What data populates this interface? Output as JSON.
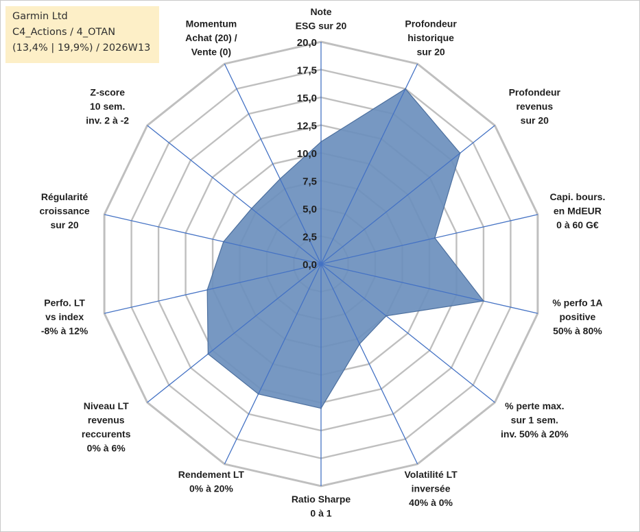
{
  "info": {
    "company": "Garmin Ltd",
    "portfolio": "C4_Actions / 4_OTAN",
    "stats": "(13,4% | 19,9%) / 2026W13"
  },
  "colors": {
    "fill": "#6b8fbd",
    "stroke": "#4c6f9e",
    "grid": "#bfbfbf",
    "spoke": "#4472c4",
    "infobox": "#fdefc7"
  },
  "chart_data": {
    "type": "radar",
    "title": "",
    "rmin": 0,
    "rmax": 20,
    "grid_rings": 8,
    "tick_labels": [
      "0,0",
      "2,5",
      "5,0",
      "7,5",
      "10,0",
      "12,5",
      "15,0",
      "17,5",
      "20,0"
    ],
    "axes": [
      {
        "label": [
          "Note",
          "ESG sur 20"
        ],
        "value": 11.0
      },
      {
        "label": [
          "Profondeur",
          "historique",
          "sur 20"
        ],
        "value": 17.5
      },
      {
        "label": [
          "Profondeur",
          "revenus",
          "sur 20"
        ],
        "value": 16.0
      },
      {
        "label": [
          "Capi. bours.",
          "en MdEUR",
          "0 à 60 G€"
        ],
        "value": 10.5
      },
      {
        "label": [
          "% perfo 1A",
          "positive",
          "50% à 80%"
        ],
        "value": 15.0
      },
      {
        "label": [
          "% perte max.",
          "sur 1 sem.",
          "inv. 50% à 20%"
        ],
        "value": 7.5
      },
      {
        "label": [
          "Volatilité LT",
          "inversée",
          "40% à 0%"
        ],
        "value": 8.0
      },
      {
        "label": [
          "Ratio Sharpe",
          "0 à 1"
        ],
        "value": 13.0
      },
      {
        "label": [
          "Rendement LT",
          "0% à 20%"
        ],
        "value": 13.0
      },
      {
        "label": [
          "Niveau LT",
          "revenus",
          "reccurents",
          "0% à 6%"
        ],
        "value": 13.0
      },
      {
        "label": [
          "Perfo. LT",
          "vs index",
          "-8% à 12%"
        ],
        "value": 10.5
      },
      {
        "label": [
          "Régularité",
          "croissance",
          "sur 20"
        ],
        "value": 9.0
      },
      {
        "label": [
          "Z-score",
          "10 sem.",
          "inv. 2 à -2"
        ],
        "value": 8.0
      },
      {
        "label": [
          "Momentum",
          "Achat (20) /",
          "Vente (0)"
        ],
        "value": 8.5
      }
    ]
  }
}
